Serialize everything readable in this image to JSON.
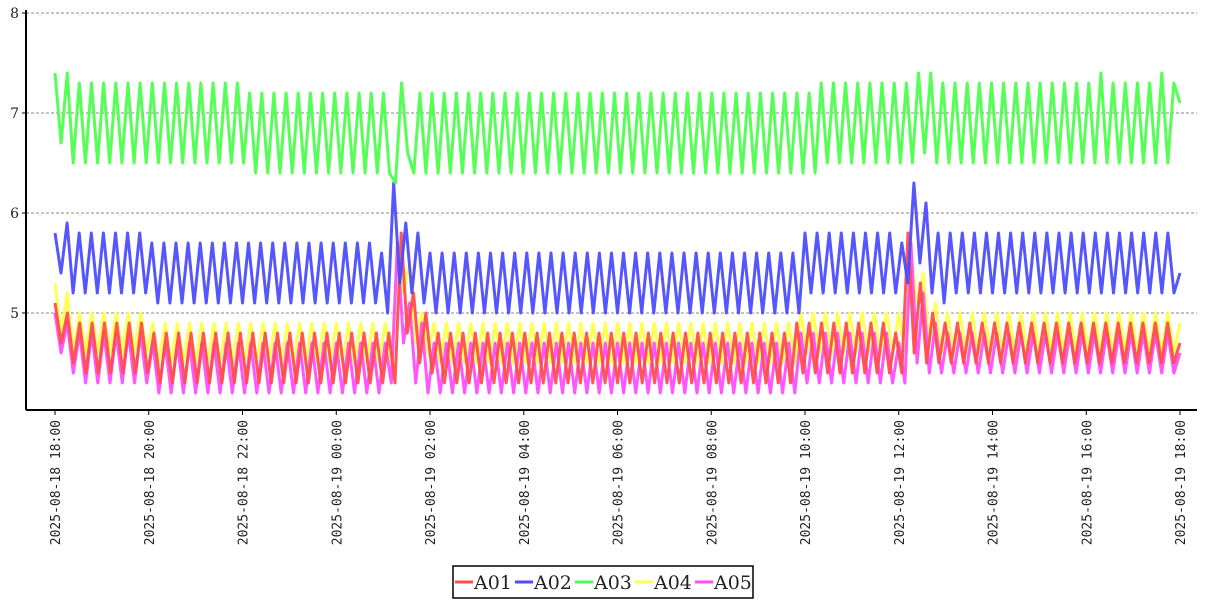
{
  "chart_data": {
    "type": "line",
    "title": "",
    "xlabel": "",
    "ylabel": "",
    "ylim": [
      4,
      8
    ],
    "yticks": [
      "5",
      "6",
      "7",
      "8"
    ],
    "x_range": [
      "2025-08-18 18:00",
      "2025-08-19 18:00"
    ],
    "xticks": [
      "2025-08-18 18:00",
      "2025-08-18 20:00",
      "2025-08-18 22:00",
      "2025-08-19 00:00",
      "2025-08-19 02:00",
      "2025-08-19 04:00",
      "2025-08-19 06:00",
      "2025-08-19 08:00",
      "2025-08-19 10:00",
      "2025-08-19 12:00",
      "2025-08-19 14:00",
      "2025-08-19 16:00",
      "2025-08-19 18:00"
    ],
    "grid": "horizontal dashed",
    "legend_placement": "bottom-center",
    "series": [
      {
        "name": "A01",
        "color": "#ff4d4d",
        "values": [
          5.1,
          4.7,
          5.0,
          4.5,
          4.9,
          4.4,
          4.9,
          4.4,
          4.9,
          4.4,
          4.9,
          4.4,
          4.9,
          4.4,
          4.9,
          4.4,
          4.8,
          4.3,
          4.8,
          4.3,
          4.8,
          4.3,
          4.8,
          4.3,
          4.8,
          4.3,
          4.8,
          4.3,
          4.8,
          4.3,
          4.8,
          4.3,
          4.8,
          4.3,
          4.8,
          4.3,
          4.8,
          4.3,
          4.8,
          4.3,
          4.8,
          4.3,
          4.8,
          4.3,
          4.8,
          4.3,
          4.8,
          4.3,
          4.8,
          4.3,
          4.8,
          4.3,
          4.8,
          4.3,
          4.8,
          4.3,
          5.8,
          4.8,
          5.2,
          4.5,
          5.0,
          4.4,
          4.8,
          4.3,
          4.8,
          4.3,
          4.8,
          4.3,
          4.8,
          4.3,
          4.8,
          4.3,
          4.8,
          4.3,
          4.8,
          4.3,
          4.8,
          4.3,
          4.8,
          4.3,
          4.8,
          4.3,
          4.8,
          4.3,
          4.8,
          4.3,
          4.8,
          4.3,
          4.8,
          4.3,
          4.8,
          4.3,
          4.8,
          4.3,
          4.8,
          4.3,
          4.8,
          4.3,
          4.8,
          4.3,
          4.8,
          4.3,
          4.8,
          4.3,
          4.8,
          4.3,
          4.8,
          4.3,
          4.8,
          4.3,
          4.8,
          4.3,
          4.8,
          4.3,
          4.8,
          4.3,
          4.8,
          4.3,
          4.8,
          4.3,
          4.9,
          4.4,
          4.9,
          4.4,
          4.9,
          4.4,
          4.9,
          4.4,
          4.9,
          4.4,
          4.9,
          4.4,
          4.9,
          4.4,
          4.9,
          4.4,
          4.8,
          4.4,
          5.8,
          4.6,
          5.3,
          4.5,
          5.0,
          4.5,
          4.9,
          4.5,
          4.9,
          4.5,
          4.9,
          4.5,
          4.9,
          4.5,
          4.9,
          4.5,
          4.9,
          4.5,
          4.9,
          4.5,
          4.9,
          4.5,
          4.9,
          4.5,
          4.9,
          4.5,
          4.9,
          4.5,
          4.9,
          4.5,
          4.9,
          4.5,
          4.9,
          4.5,
          4.9,
          4.5,
          4.9,
          4.5,
          4.9,
          4.5,
          4.9,
          4.5,
          4.9,
          4.5,
          4.7
        ]
      },
      {
        "name": "A02",
        "color": "#4d4dff",
        "values": [
          5.8,
          5.4,
          5.9,
          5.2,
          5.8,
          5.2,
          5.8,
          5.2,
          5.8,
          5.2,
          5.8,
          5.2,
          5.8,
          5.2,
          5.8,
          5.2,
          5.7,
          5.1,
          5.7,
          5.1,
          5.7,
          5.1,
          5.7,
          5.1,
          5.7,
          5.1,
          5.7,
          5.1,
          5.7,
          5.1,
          5.7,
          5.1,
          5.7,
          5.1,
          5.7,
          5.1,
          5.7,
          5.1,
          5.7,
          5.1,
          5.7,
          5.1,
          5.7,
          5.1,
          5.7,
          5.1,
          5.7,
          5.1,
          5.7,
          5.1,
          5.7,
          5.1,
          5.7,
          5.1,
          5.6,
          5.0,
          6.3,
          5.3,
          5.9,
          5.2,
          5.8,
          5.1,
          5.6,
          5.0,
          5.6,
          5.0,
          5.6,
          5.0,
          5.6,
          5.0,
          5.6,
          5.0,
          5.6,
          5.0,
          5.6,
          5.0,
          5.6,
          5.0,
          5.6,
          5.0,
          5.6,
          5.0,
          5.6,
          5.0,
          5.6,
          5.0,
          5.6,
          5.0,
          5.6,
          5.0,
          5.6,
          5.0,
          5.6,
          5.0,
          5.6,
          5.0,
          5.6,
          5.0,
          5.6,
          5.0,
          5.6,
          5.0,
          5.6,
          5.0,
          5.6,
          5.0,
          5.6,
          5.0,
          5.6,
          5.0,
          5.6,
          5.0,
          5.6,
          5.0,
          5.6,
          5.0,
          5.6,
          5.0,
          5.6,
          5.0,
          5.6,
          5.0,
          5.6,
          5.0,
          5.8,
          5.2,
          5.8,
          5.2,
          5.8,
          5.2,
          5.8,
          5.2,
          5.8,
          5.2,
          5.8,
          5.2,
          5.8,
          5.2,
          5.8,
          5.2,
          5.7,
          5.3,
          6.3,
          5.5,
          6.1,
          5.2,
          5.8,
          5.1,
          5.8,
          5.2,
          5.8,
          5.2,
          5.8,
          5.2,
          5.8,
          5.2,
          5.8,
          5.2,
          5.8,
          5.2,
          5.8,
          5.2,
          5.8,
          5.2,
          5.8,
          5.2,
          5.8,
          5.2,
          5.8,
          5.2,
          5.8,
          5.2,
          5.8,
          5.2,
          5.8,
          5.2,
          5.8,
          5.2,
          5.8,
          5.2,
          5.8,
          5.2,
          5.8,
          5.2,
          5.8,
          5.2,
          5.4
        ]
      },
      {
        "name": "A03",
        "color": "#4dff4d",
        "values": [
          7.4,
          6.7,
          7.4,
          6.5,
          7.3,
          6.5,
          7.3,
          6.5,
          7.3,
          6.5,
          7.3,
          6.5,
          7.3,
          6.5,
          7.3,
          6.5,
          7.3,
          6.5,
          7.3,
          6.5,
          7.3,
          6.5,
          7.3,
          6.5,
          7.3,
          6.5,
          7.3,
          6.5,
          7.3,
          6.5,
          7.3,
          6.5,
          7.2,
          6.4,
          7.2,
          6.4,
          7.2,
          6.4,
          7.2,
          6.4,
          7.2,
          6.4,
          7.2,
          6.4,
          7.2,
          6.4,
          7.2,
          6.4,
          7.2,
          6.4,
          7.2,
          6.4,
          7.2,
          6.4,
          7.2,
          6.4,
          6.3,
          7.3,
          6.6,
          6.4,
          7.2,
          6.4,
          7.2,
          6.4,
          7.2,
          6.4,
          7.2,
          6.4,
          7.2,
          6.4,
          7.2,
          6.4,
          7.2,
          6.4,
          7.2,
          6.4,
          7.2,
          6.4,
          7.2,
          6.4,
          7.2,
          6.4,
          7.2,
          6.4,
          7.2,
          6.4,
          7.2,
          6.4,
          7.2,
          6.4,
          7.2,
          6.4,
          7.2,
          6.4,
          7.2,
          6.4,
          7.2,
          6.4,
          7.2,
          6.4,
          7.2,
          6.4,
          7.2,
          6.4,
          7.2,
          6.4,
          7.2,
          6.4,
          7.2,
          6.4,
          7.2,
          6.4,
          7.2,
          6.4,
          7.2,
          6.4,
          7.2,
          6.4,
          7.2,
          6.4,
          7.2,
          6.4,
          7.2,
          6.4,
          7.2,
          6.4,
          7.3,
          6.5,
          7.3,
          6.5,
          7.3,
          6.5,
          7.3,
          6.5,
          7.3,
          6.5,
          7.3,
          6.5,
          7.3,
          6.5,
          7.3,
          6.5,
          7.4,
          6.6,
          7.4,
          6.5,
          7.3,
          6.5,
          7.3,
          6.5,
          7.3,
          6.5,
          7.3,
          6.5,
          7.3,
          6.5,
          7.3,
          6.5,
          7.3,
          6.5,
          7.3,
          6.5,
          7.3,
          6.5,
          7.3,
          6.5,
          7.3,
          6.5,
          7.3,
          6.5,
          7.3,
          6.5,
          7.4,
          6.5,
          7.3,
          6.5,
          7.3,
          6.5,
          7.3,
          6.5,
          7.3,
          6.5,
          7.4,
          6.5,
          7.3,
          7.1
        ]
      },
      {
        "name": "A04",
        "color": "#ffff4d",
        "values": [
          5.3,
          4.8,
          5.2,
          4.6,
          5.0,
          4.6,
          5.0,
          4.6,
          5.0,
          4.6,
          5.0,
          4.6,
          5.0,
          4.6,
          5.0,
          4.6,
          4.9,
          4.5,
          4.9,
          4.5,
          4.9,
          4.5,
          4.9,
          4.5,
          4.9,
          4.5,
          4.9,
          4.5,
          4.9,
          4.5,
          4.9,
          4.5,
          4.9,
          4.5,
          4.9,
          4.5,
          4.9,
          4.5,
          4.9,
          4.5,
          4.9,
          4.5,
          4.9,
          4.5,
          4.9,
          4.5,
          4.9,
          4.5,
          4.9,
          4.5,
          4.9,
          4.5,
          4.9,
          4.5,
          4.9,
          4.5,
          5.6,
          5.2,
          5.5,
          4.7,
          5.0,
          4.6,
          4.9,
          4.5,
          4.9,
          4.5,
          4.9,
          4.5,
          4.9,
          4.5,
          4.9,
          4.5,
          4.9,
          4.5,
          4.9,
          4.5,
          4.9,
          4.5,
          4.9,
          4.5,
          4.9,
          4.5,
          4.9,
          4.5,
          4.9,
          4.5,
          4.9,
          4.5,
          4.9,
          4.5,
          4.9,
          4.5,
          4.9,
          4.5,
          4.9,
          4.5,
          4.9,
          4.5,
          4.9,
          4.5,
          4.9,
          4.5,
          4.9,
          4.5,
          4.9,
          4.5,
          4.9,
          4.5,
          4.9,
          4.5,
          4.9,
          4.5,
          4.9,
          4.5,
          4.9,
          4.5,
          4.9,
          4.5,
          4.9,
          4.5,
          4.9,
          4.5,
          5.0,
          4.6,
          5.0,
          4.6,
          5.0,
          4.6,
          5.0,
          4.6,
          5.0,
          4.6,
          5.0,
          4.6,
          5.0,
          4.6,
          5.0,
          4.6,
          5.0,
          4.6,
          5.6,
          5.1,
          5.4,
          4.7,
          5.1,
          4.6,
          5.0,
          4.6,
          5.0,
          4.6,
          5.0,
          4.6,
          5.0,
          4.6,
          5.0,
          4.6,
          5.0,
          4.6,
          5.0,
          4.6,
          5.0,
          4.6,
          5.0,
          4.6,
          5.0,
          4.6,
          5.0,
          4.6,
          5.0,
          4.6,
          5.0,
          4.6,
          5.0,
          4.6,
          5.0,
          4.6,
          5.0,
          4.6,
          5.0,
          4.6,
          5.0,
          4.6,
          5.0,
          4.6,
          4.9
        ]
      },
      {
        "name": "A05",
        "color": "#ff4dff",
        "values": [
          5.0,
          4.6,
          4.9,
          4.4,
          4.8,
          4.3,
          4.8,
          4.3,
          4.8,
          4.3,
          4.8,
          4.3,
          4.8,
          4.3,
          4.8,
          4.3,
          4.7,
          4.2,
          4.7,
          4.2,
          4.7,
          4.2,
          4.7,
          4.2,
          4.7,
          4.2,
          4.7,
          4.2,
          4.7,
          4.2,
          4.7,
          4.2,
          4.7,
          4.2,
          4.7,
          4.2,
          4.7,
          4.2,
          4.7,
          4.2,
          4.7,
          4.2,
          4.7,
          4.2,
          4.7,
          4.2,
          4.7,
          4.2,
          4.7,
          4.2,
          4.7,
          4.2,
          4.7,
          4.2,
          4.7,
          4.3,
          5.7,
          4.7,
          5.1,
          4.3,
          4.9,
          4.2,
          4.7,
          4.2,
          4.7,
          4.2,
          4.7,
          4.2,
          4.7,
          4.2,
          4.7,
          4.2,
          4.7,
          4.2,
          4.7,
          4.2,
          4.7,
          4.2,
          4.7,
          4.2,
          4.7,
          4.2,
          4.7,
          4.2,
          4.7,
          4.2,
          4.7,
          4.2,
          4.7,
          4.2,
          4.7,
          4.2,
          4.7,
          4.2,
          4.7,
          4.2,
          4.7,
          4.2,
          4.7,
          4.2,
          4.7,
          4.2,
          4.7,
          4.2,
          4.7,
          4.2,
          4.7,
          4.2,
          4.7,
          4.2,
          4.7,
          4.2,
          4.7,
          4.2,
          4.7,
          4.2,
          4.7,
          4.2,
          4.7,
          4.2,
          4.7,
          4.2,
          4.8,
          4.3,
          4.8,
          4.3,
          4.8,
          4.3,
          4.8,
          4.3,
          4.8,
          4.3,
          4.8,
          4.3,
          4.8,
          4.3,
          4.8,
          4.3,
          4.7,
          4.3,
          5.7,
          4.5,
          5.2,
          4.4,
          4.9,
          4.4,
          4.8,
          4.4,
          4.8,
          4.4,
          4.8,
          4.4,
          4.8,
          4.4,
          4.8,
          4.4,
          4.8,
          4.4,
          4.8,
          4.4,
          4.8,
          4.4,
          4.8,
          4.4,
          4.8,
          4.4,
          4.8,
          4.4,
          4.8,
          4.4,
          4.8,
          4.4,
          4.8,
          4.4,
          4.8,
          4.4,
          4.8,
          4.4,
          4.8,
          4.4,
          4.8,
          4.4,
          4.8,
          4.4,
          4.6
        ]
      }
    ],
    "draw_order": [
      "A04",
      "A05",
      "A01",
      "A02",
      "A03"
    ]
  }
}
